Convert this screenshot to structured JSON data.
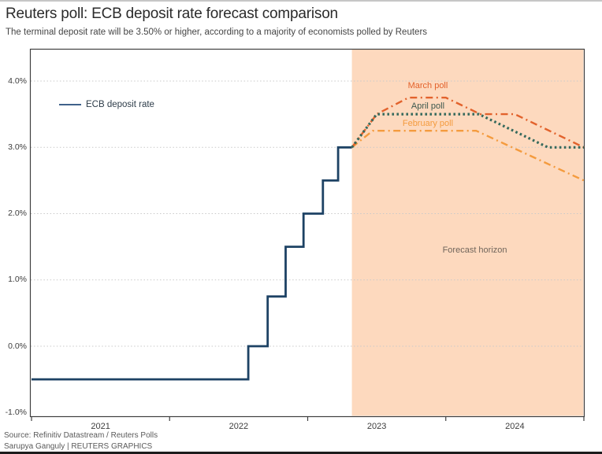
{
  "page": {
    "title": "Reuters poll: ECB deposit rate forecast comparison",
    "subtitle": "The terminal deposit rate will be 3.50% or higher, according to a majority of economists polled by Reuters",
    "source_line": "Source: Refinitiv Datastream / Reuters Polls",
    "byline": "Sarupya Ganguly | REUTERS GRAPHICS"
  },
  "chart_data": {
    "type": "line",
    "title": "Reuters poll: ECB deposit rate forecast comparison",
    "subtitle": "The terminal deposit rate will be 3.50% or higher, according to a majority of economists polled by Reuters",
    "x_axis": {
      "domain": [
        2021,
        2025
      ],
      "tick_years": [
        2021,
        2022,
        2023,
        2024,
        2025
      ],
      "labels": [
        {
          "text": "2021",
          "year": 2021.5
        },
        {
          "text": "2022",
          "year": 2022.5
        },
        {
          "text": "2023",
          "year": 2023.5
        },
        {
          "text": "2024",
          "year": 2024.5
        }
      ]
    },
    "y_axis": {
      "unit": "%",
      "ticks": [
        {
          "text": "4.0%",
          "value": 4.0
        },
        {
          "text": "3.0%",
          "value": 3.0
        },
        {
          "text": "2.0%",
          "value": 2.0
        },
        {
          "text": "1.0%",
          "value": 1.0
        },
        {
          "text": "0.0%",
          "value": 0.0
        },
        {
          "text": "-1.0%",
          "value": -1.0
        }
      ],
      "gridline_values": [
        4.0,
        3.0,
        2.0,
        1.0,
        0.0
      ],
      "grid": "dotted"
    },
    "forecast_region": {
      "start_year": 2023.32,
      "end_year": 2025.0,
      "fill": "#fdd9be"
    },
    "legend": {
      "label": "ECB deposit rate",
      "color": "#3f628a",
      "position": "top-left"
    },
    "series": [
      {
        "name": "ECB deposit rate",
        "color": "#1d4264",
        "style": "solid",
        "width": 2.8,
        "points": [
          [
            2021.0,
            -0.5
          ],
          [
            2022.57,
            -0.5
          ],
          [
            2022.57,
            0.0
          ],
          [
            2022.71,
            0.0
          ],
          [
            2022.71,
            0.75
          ],
          [
            2022.84,
            0.75
          ],
          [
            2022.84,
            1.5
          ],
          [
            2022.97,
            1.5
          ],
          [
            2022.97,
            2.0
          ],
          [
            2023.11,
            2.0
          ],
          [
            2023.11,
            2.5
          ],
          [
            2023.22,
            2.5
          ],
          [
            2023.22,
            3.0
          ],
          [
            2023.32,
            3.0
          ]
        ]
      },
      {
        "name": "February poll",
        "color": "#f49b3e",
        "style": "dashdot",
        "width": 2.4,
        "points": [
          [
            2023.32,
            3.0
          ],
          [
            2023.47,
            3.25
          ],
          [
            2024.22,
            3.25
          ],
          [
            2025.0,
            2.5
          ]
        ]
      },
      {
        "name": "March poll",
        "color": "#e2622c",
        "style": "dashdot",
        "width": 2.4,
        "points": [
          [
            2023.32,
            3.0
          ],
          [
            2023.5,
            3.5
          ],
          [
            2023.73,
            3.75
          ],
          [
            2024.0,
            3.75
          ],
          [
            2024.25,
            3.5
          ],
          [
            2024.5,
            3.5
          ],
          [
            2025.0,
            3.0
          ]
        ]
      },
      {
        "name": "April poll",
        "color": "#35695c",
        "style": "dotted",
        "width": 3.2,
        "points": [
          [
            2023.32,
            3.0
          ],
          [
            2023.5,
            3.5
          ],
          [
            2024.24,
            3.5
          ],
          [
            2024.74,
            3.0
          ],
          [
            2025.0,
            3.0
          ]
        ]
      }
    ],
    "annotations": [
      {
        "text": "March poll",
        "year": 2023.87,
        "value": 3.93,
        "color": "#e2622c"
      },
      {
        "text": "April poll",
        "year": 2023.87,
        "value": 3.62,
        "color": "#3c584e"
      },
      {
        "text": "February poll",
        "year": 2023.87,
        "value": 3.36,
        "color": "#f49b3e"
      },
      {
        "text": "Forecast horizon",
        "year": 2024.21,
        "value": 1.45,
        "color": "#70655b"
      }
    ]
  }
}
